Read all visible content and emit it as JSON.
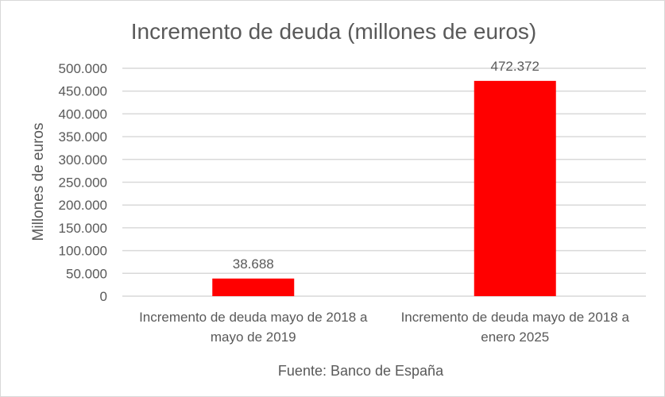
{
  "chart_data": {
    "type": "bar",
    "title": "Incremento de deuda (millones de euros)",
    "ylabel": "Millones de euros",
    "xlabel": "Fuente: Banco de España",
    "categories": [
      [
        "Incremento de deuda mayo de 2018 a",
        "mayo de 2019"
      ],
      [
        "Incremento de deuda mayo de 2018 a",
        "enero 2025"
      ]
    ],
    "values": [
      38688,
      472372
    ],
    "data_labels": [
      "38.688",
      "472.372"
    ],
    "ylim": [
      0,
      500000
    ],
    "yticks": [
      0,
      50000,
      100000,
      150000,
      200000,
      250000,
      300000,
      350000,
      400000,
      450000,
      500000
    ],
    "ytick_labels": [
      "0",
      "50.000",
      "100.000",
      "150.000",
      "200.000",
      "250.000",
      "300.000",
      "350.000",
      "400.000",
      "450.000",
      "500.000"
    ],
    "grid": true,
    "legend": "none",
    "bar_color": "#FF0000",
    "grid_color": "#D9D9D9"
  }
}
